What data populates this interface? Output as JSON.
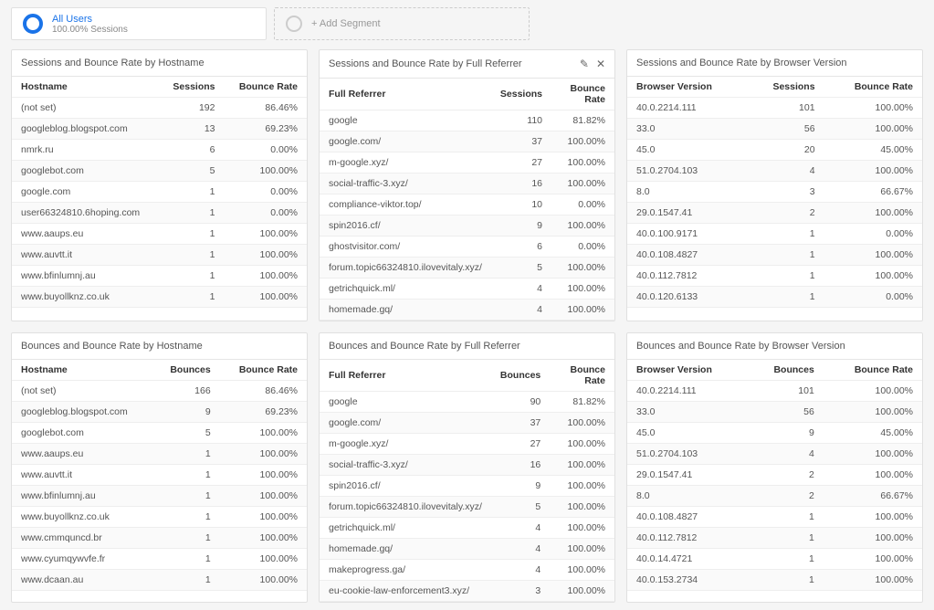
{
  "segments": {
    "active": {
      "title": "All Users",
      "subtitle": "100.00% Sessions"
    },
    "add": {
      "label": "+ Add Segment"
    }
  },
  "panels": [
    {
      "id": "sessions-hostname",
      "title": "Sessions and Bounce Rate by Hostname",
      "showIcons": false,
      "columns": [
        "Hostname",
        "Sessions",
        "Bounce Rate"
      ],
      "rows": [
        [
          "(not set)",
          "192",
          "86.46%"
        ],
        [
          "googleblog.blogspot.com",
          "13",
          "69.23%"
        ],
        [
          "nmrk.ru",
          "6",
          "0.00%"
        ],
        [
          "googlebot.com",
          "5",
          "100.00%"
        ],
        [
          "google.com",
          "1",
          "0.00%"
        ],
        [
          "user66324810.6hoping.com",
          "1",
          "0.00%"
        ],
        [
          "www.aaups.eu",
          "1",
          "100.00%"
        ],
        [
          "www.auvtt.it",
          "1",
          "100.00%"
        ],
        [
          "www.bfinlumnj.au",
          "1",
          "100.00%"
        ],
        [
          "www.buyollknz.co.uk",
          "1",
          "100.00%"
        ]
      ]
    },
    {
      "id": "sessions-referrer",
      "title": "Sessions and Bounce Rate by Full Referrer",
      "showIcons": true,
      "columns": [
        "Full Referrer",
        "Sessions",
        "Bounce Rate"
      ],
      "rows": [
        [
          "google",
          "110",
          "81.82%"
        ],
        [
          "google.com/",
          "37",
          "100.00%"
        ],
        [
          "m-google.xyz/",
          "27",
          "100.00%"
        ],
        [
          "social-traffic-3.xyz/",
          "16",
          "100.00%"
        ],
        [
          "compliance-viktor.top/",
          "10",
          "0.00%"
        ],
        [
          "spin2016.cf/",
          "9",
          "100.00%"
        ],
        [
          "ghostvisitor.com/",
          "6",
          "0.00%"
        ],
        [
          "forum.topic66324810.ilovevitaly.xyz/",
          "5",
          "100.00%"
        ],
        [
          "getrichquick.ml/",
          "4",
          "100.00%"
        ],
        [
          "homemade.gq/",
          "4",
          "100.00%"
        ]
      ]
    },
    {
      "id": "sessions-browser",
      "title": "Sessions and Bounce Rate by Browser Version",
      "showIcons": false,
      "columns": [
        "Browser Version",
        "Sessions",
        "Bounce Rate"
      ],
      "rows": [
        [
          "40.0.2214.111",
          "101",
          "100.00%"
        ],
        [
          "33.0",
          "56",
          "100.00%"
        ],
        [
          "45.0",
          "20",
          "45.00%"
        ],
        [
          "51.0.2704.103",
          "4",
          "100.00%"
        ],
        [
          "8.0",
          "3",
          "66.67%"
        ],
        [
          "29.0.1547.41",
          "2",
          "100.00%"
        ],
        [
          "40.0.100.9171",
          "1",
          "0.00%"
        ],
        [
          "40.0.108.4827",
          "1",
          "100.00%"
        ],
        [
          "40.0.112.7812",
          "1",
          "100.00%"
        ],
        [
          "40.0.120.6133",
          "1",
          "0.00%"
        ]
      ]
    },
    {
      "id": "bounces-hostname",
      "title": "Bounces and Bounce Rate by Hostname",
      "showIcons": false,
      "columns": [
        "Hostname",
        "Bounces",
        "Bounce Rate"
      ],
      "rows": [
        [
          "(not set)",
          "166",
          "86.46%"
        ],
        [
          "googleblog.blogspot.com",
          "9",
          "69.23%"
        ],
        [
          "googlebot.com",
          "5",
          "100.00%"
        ],
        [
          "www.aaups.eu",
          "1",
          "100.00%"
        ],
        [
          "www.auvtt.it",
          "1",
          "100.00%"
        ],
        [
          "www.bfinlumnj.au",
          "1",
          "100.00%"
        ],
        [
          "www.buyollknz.co.uk",
          "1",
          "100.00%"
        ],
        [
          "www.cmmquncd.br",
          "1",
          "100.00%"
        ],
        [
          "www.cyumqywvfe.fr",
          "1",
          "100.00%"
        ],
        [
          "www.dcaan.au",
          "1",
          "100.00%"
        ]
      ]
    },
    {
      "id": "bounces-referrer",
      "title": "Bounces and Bounce Rate by Full Referrer",
      "showIcons": false,
      "columns": [
        "Full Referrer",
        "Bounces",
        "Bounce Rate"
      ],
      "rows": [
        [
          "google",
          "90",
          "81.82%"
        ],
        [
          "google.com/",
          "37",
          "100.00%"
        ],
        [
          "m-google.xyz/",
          "27",
          "100.00%"
        ],
        [
          "social-traffic-3.xyz/",
          "16",
          "100.00%"
        ],
        [
          "spin2016.cf/",
          "9",
          "100.00%"
        ],
        [
          "forum.topic66324810.ilovevitaly.xyz/",
          "5",
          "100.00%"
        ],
        [
          "getrichquick.ml/",
          "4",
          "100.00%"
        ],
        [
          "homemade.gq/",
          "4",
          "100.00%"
        ],
        [
          "makeprogress.ga/",
          "4",
          "100.00%"
        ],
        [
          "eu-cookie-law-enforcement3.xyz/",
          "3",
          "100.00%"
        ]
      ]
    },
    {
      "id": "bounces-browser",
      "title": "Bounces and Bounce Rate by Browser Version",
      "showIcons": false,
      "columns": [
        "Browser Version",
        "Bounces",
        "Bounce Rate"
      ],
      "rows": [
        [
          "40.0.2214.111",
          "101",
          "100.00%"
        ],
        [
          "33.0",
          "56",
          "100.00%"
        ],
        [
          "45.0",
          "9",
          "45.00%"
        ],
        [
          "51.0.2704.103",
          "4",
          "100.00%"
        ],
        [
          "29.0.1547.41",
          "2",
          "100.00%"
        ],
        [
          "8.0",
          "2",
          "66.67%"
        ],
        [
          "40.0.108.4827",
          "1",
          "100.00%"
        ],
        [
          "40.0.112.7812",
          "1",
          "100.00%"
        ],
        [
          "40.0.14.4721",
          "1",
          "100.00%"
        ],
        [
          "40.0.153.2734",
          "1",
          "100.00%"
        ]
      ]
    }
  ]
}
